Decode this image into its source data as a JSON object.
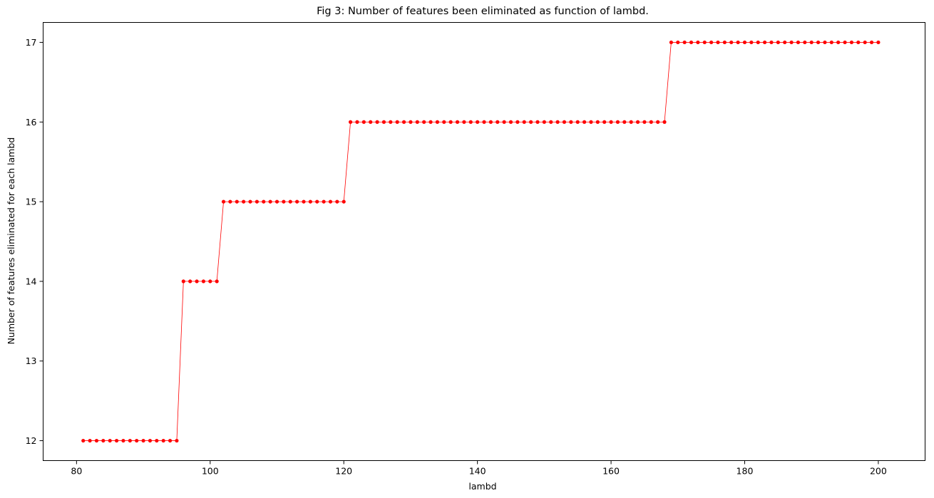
{
  "chart_data": {
    "type": "line",
    "title": "Fig 3: Number of features been eliminated as function of lambd.",
    "xlabel": "lambd",
    "ylabel": "Number of features eliminated for each lambd",
    "xlim": [
      75,
      207
    ],
    "ylim": [
      11.75,
      17.25
    ],
    "xticks": [
      80,
      100,
      120,
      140,
      160,
      180,
      200
    ],
    "yticks": [
      12,
      13,
      14,
      15,
      16,
      17
    ],
    "grid": false,
    "color": "#ff0000",
    "marker": "dot",
    "series": [
      {
        "segments": [
          {
            "x_start": 81,
            "x_end": 95,
            "y": 12
          },
          {
            "x_start": 96,
            "x_end": 101,
            "y": 14
          },
          {
            "x_start": 102,
            "x_end": 120,
            "y": 15
          },
          {
            "x_start": 121,
            "x_end": 168,
            "y": 16
          },
          {
            "x_start": 169,
            "x_end": 200,
            "y": 17
          }
        ]
      }
    ]
  }
}
